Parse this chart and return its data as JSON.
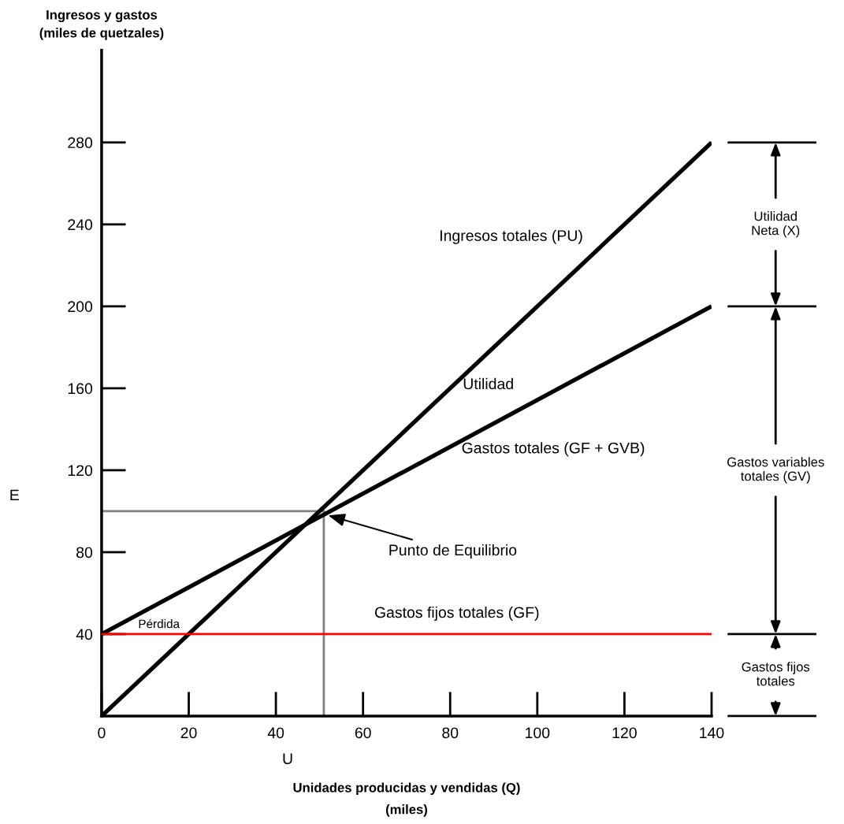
{
  "chart_data": {
    "type": "line",
    "xlabel": "Unidades producidas y vendidas (Q)\n(miles)",
    "ylabel": "Ingresos y gastos\n(miles de quetzales)",
    "x": [
      0,
      140
    ],
    "series": [
      {
        "name": "Ingresos totales (PU)",
        "color": "#000000",
        "values": [
          0,
          280
        ]
      },
      {
        "name": "Gastos totales (GF + GVB)",
        "color": "#000000",
        "values": [
          40,
          200
        ]
      },
      {
        "name": "Gastos fijos totales (GF)",
        "color": "#ff0000",
        "values": [
          40,
          40
        ]
      }
    ],
    "xlim": [
      0,
      140
    ],
    "ylim": [
      0,
      325
    ],
    "xticks": [
      0,
      20,
      40,
      60,
      80,
      100,
      120,
      140
    ],
    "yticks": [
      40,
      80,
      120,
      160,
      200,
      240,
      280
    ],
    "ref_lines": [
      {
        "axis": "x",
        "value": 51,
        "color": "#808080"
      },
      {
        "axis": "y",
        "value": 100,
        "color": "#808080"
      }
    ],
    "annotations": [
      "Utilidad\nNeta (X)",
      "Gastos variables\ntotales (GV)",
      "Gastos fijos\ntotales",
      "E",
      "U",
      "Utilidad",
      "Pérdida",
      {
        "text": "Punto de Equilibrio",
        "x": 52,
        "y": 98
      }
    ],
    "grid": false,
    "legend": false,
    "marker": "none",
    "line_style": "solid"
  }
}
